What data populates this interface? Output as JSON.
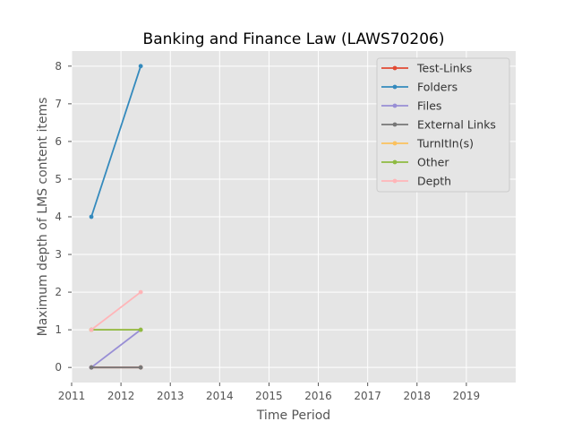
{
  "chart_data": {
    "type": "line",
    "title": "Banking and Finance Law (LAWS70206)",
    "xlabel": "Time Period",
    "ylabel": "Maximum depth of LMS content items",
    "xlim": [
      2011,
      2020
    ],
    "ylim": [
      -0.4,
      8.4
    ],
    "xticks": [
      2011,
      2012,
      2013,
      2014,
      2015,
      2016,
      2017,
      2018,
      2019
    ],
    "yticks": [
      0,
      1,
      2,
      3,
      4,
      5,
      6,
      7,
      8
    ],
    "x": [
      2011.4,
      2012.4
    ],
    "grid": true,
    "legend_position": "top-right",
    "series": [
      {
        "name": "Test-Links",
        "color": "#E24A33",
        "values": [
          0,
          0
        ]
      },
      {
        "name": "Folders",
        "color": "#348ABD",
        "values": [
          4,
          8
        ]
      },
      {
        "name": "Files",
        "color": "#988ED5",
        "values": [
          0,
          1
        ]
      },
      {
        "name": "External Links",
        "color": "#777777",
        "values": [
          0,
          0
        ]
      },
      {
        "name": "TurnItIn(s)",
        "color": "#FBC15E",
        "values": [
          1,
          1
        ]
      },
      {
        "name": "Other",
        "color": "#8EBA42",
        "values": [
          1,
          1
        ]
      },
      {
        "name": "Depth",
        "color": "#FFB5B8",
        "values": [
          1,
          2
        ]
      }
    ]
  }
}
